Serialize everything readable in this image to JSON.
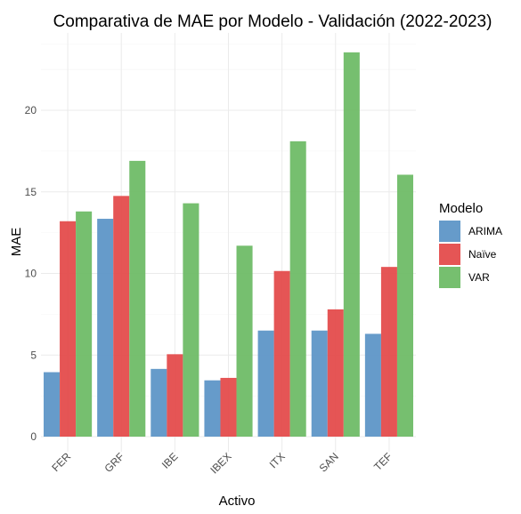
{
  "chart_data": {
    "type": "bar",
    "title": "Comparativa de MAE por Modelo - Validación (2022-2023)",
    "xlabel": "Activo",
    "ylabel": "MAE",
    "categories": [
      "FER",
      "GRF",
      "IBE",
      "IBEX",
      "ITX",
      "SAN",
      "TEF"
    ],
    "ylim": [
      0,
      25
    ],
    "yticks": [
      0,
      5,
      10,
      15,
      20
    ],
    "grid": true,
    "legend": {
      "title": "Modelo",
      "position": "right"
    },
    "series": [
      {
        "name": "ARIMA",
        "color": "#5a93c6",
        "values": [
          3.95,
          13.35,
          4.15,
          3.45,
          6.5,
          6.5,
          6.3
        ]
      },
      {
        "name": "Naïve",
        "color": "#e34848",
        "values": [
          13.2,
          14.75,
          5.05,
          3.6,
          10.15,
          7.8,
          10.4
        ]
      },
      {
        "name": "VAR",
        "color": "#6cba64",
        "values": [
          13.8,
          16.9,
          14.3,
          11.7,
          18.1,
          23.55,
          16.05
        ]
      }
    ]
  }
}
